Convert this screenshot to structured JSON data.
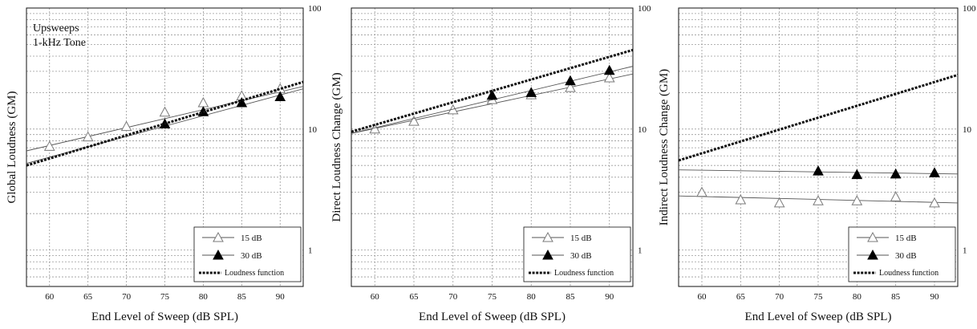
{
  "chart_data": [
    {
      "type": "scatter",
      "xlabel": "End Level of Sweep (dB SPL)",
      "ylabel": "Global Loudness (GM)",
      "xlim": [
        57,
        93
      ],
      "ylim": [
        0.5,
        100
      ],
      "yscale": "log",
      "x_ticks": [
        "60",
        "65",
        "70",
        "75",
        "80",
        "85",
        "90"
      ],
      "y_ticks": [
        "1",
        "10",
        "100"
      ],
      "grid": true,
      "annotation": [
        "Upsweeps",
        "1-kHz Tone"
      ],
      "legend": {
        "placement": "bottom-right",
        "entries": [
          "15 dB",
          "30 dB",
          "Loudness function"
        ]
      },
      "series": [
        {
          "name": "15 dB",
          "marker": "open-triangle",
          "x": [
            60,
            65,
            70,
            75,
            80,
            85,
            90
          ],
          "y": [
            7.2,
            8.6,
            10.5,
            13.8,
            16.5,
            18.8,
            21.5
          ],
          "fit": [
            [
              57,
              6.6
            ],
            [
              93,
              22.5
            ]
          ]
        },
        {
          "name": "30 dB",
          "marker": "filled-triangle",
          "x": [
            75,
            80,
            85,
            90
          ],
          "y": [
            11.0,
            13.9,
            16.5,
            18.5
          ],
          "fit": [
            [
              57,
              5.2
            ],
            [
              93,
              21.5
            ]
          ]
        },
        {
          "name": "Loudness function",
          "line": "dotted",
          "x": [
            57,
            93
          ],
          "y": [
            5.0,
            24.5
          ]
        }
      ]
    },
    {
      "type": "scatter",
      "xlabel": "End Level of Sweep (dB SPL)",
      "ylabel": "Direct Loudness Change (GM)",
      "xlim": [
        57,
        93
      ],
      "ylim": [
        0.5,
        100
      ],
      "yscale": "log",
      "x_ticks": [
        "60",
        "65",
        "70",
        "75",
        "80",
        "85",
        "90"
      ],
      "y_ticks": [
        "1",
        "10",
        "100"
      ],
      "grid": true,
      "legend": {
        "placement": "bottom-right",
        "entries": [
          "15 dB",
          "30 dB",
          "Loudness function"
        ]
      },
      "series": [
        {
          "name": "15 dB",
          "marker": "open-triangle",
          "x": [
            60,
            65,
            70,
            75,
            80,
            85,
            90
          ],
          "y": [
            10.0,
            11.6,
            14.4,
            17.5,
            19.2,
            22.0,
            26.5
          ],
          "fit": [
            [
              57,
              9.2
            ],
            [
              93,
              28.5
            ]
          ]
        },
        {
          "name": "30 dB",
          "marker": "filled-triangle",
          "x": [
            75,
            80,
            85,
            90
          ],
          "y": [
            19.0,
            20.0,
            25.0,
            30.5
          ],
          "fit": [
            [
              57,
              9.2
            ],
            [
              93,
              33.0
            ]
          ]
        },
        {
          "name": "Loudness function",
          "line": "dotted",
          "x": [
            57,
            93
          ],
          "y": [
            9.5,
            45.0
          ]
        }
      ]
    },
    {
      "type": "scatter",
      "xlabel": "End Level of Sweep (dB SPL)",
      "ylabel": "Indirect Loudness Change (GM)",
      "xlim": [
        57,
        93
      ],
      "ylim": [
        0.5,
        100
      ],
      "yscale": "log",
      "x_ticks": [
        "60",
        "65",
        "70",
        "75",
        "80",
        "85",
        "90"
      ],
      "y_ticks": [
        "1",
        "10",
        "100"
      ],
      "grid": true,
      "legend": {
        "placement": "bottom-right",
        "entries": [
          "15 dB",
          "30 dB",
          "Loudness function"
        ]
      },
      "series": [
        {
          "name": "15 dB",
          "marker": "open-triangle",
          "x": [
            60,
            65,
            70,
            75,
            80,
            85,
            90
          ],
          "y": [
            3.0,
            2.6,
            2.45,
            2.55,
            2.55,
            2.75,
            2.45
          ],
          "fit": [
            [
              57,
              2.8
            ],
            [
              93,
              2.45
            ]
          ]
        },
        {
          "name": "30 dB",
          "marker": "filled-triangle",
          "x": [
            75,
            80,
            85,
            90
          ],
          "y": [
            4.5,
            4.2,
            4.25,
            4.35
          ],
          "fit": [
            [
              57,
              4.6
            ],
            [
              93,
              4.25
            ]
          ]
        },
        {
          "name": "Loudness function",
          "line": "dotted",
          "x": [
            57,
            93
          ],
          "y": [
            5.5,
            28.0
          ]
        }
      ]
    }
  ]
}
